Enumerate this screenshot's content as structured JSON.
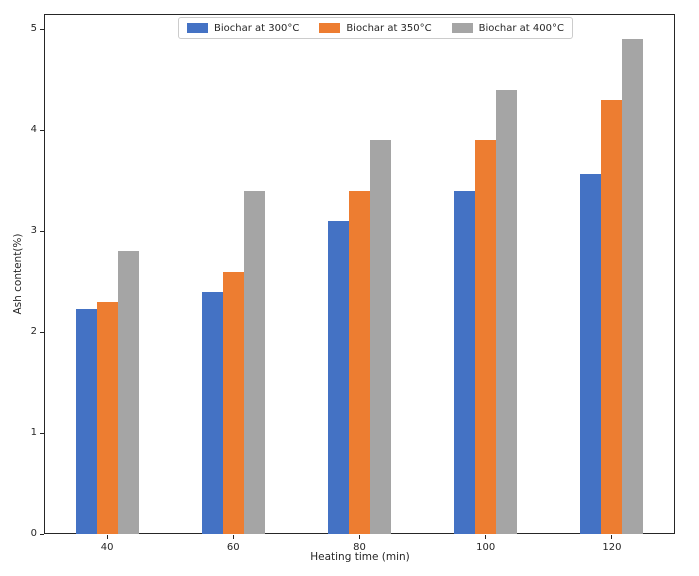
{
  "figure": {
    "background": "#ffffff",
    "spine_color": "#262626",
    "text_color": "#262626",
    "legend_border_color": "#cccccc"
  },
  "chart_data": {
    "type": "bar",
    "title": "",
    "xlabel": "Heating time (min)",
    "ylabel": "Ash content(%)",
    "categories": [
      "40",
      "60",
      "80",
      "100",
      "120"
    ],
    "series": [
      {
        "name": "Biochar at 300°C",
        "color": "#4472C4",
        "values": [
          2.23,
          2.4,
          3.1,
          3.4,
          3.57
        ]
      },
      {
        "name": "Biochar at 350°C",
        "color": "#ED7D31",
        "values": [
          2.3,
          2.6,
          3.4,
          3.9,
          4.3
        ]
      },
      {
        "name": "Biochar at 400°C",
        "color": "#A5A5A5",
        "values": [
          2.8,
          3.4,
          3.9,
          4.4,
          4.9
        ]
      }
    ],
    "yticks": [
      "0",
      "1",
      "2",
      "3",
      "4",
      "5"
    ],
    "ylim": [
      0,
      5.15
    ],
    "xlim_categories_padding": true,
    "grid": false,
    "legend_position": "upper center"
  }
}
